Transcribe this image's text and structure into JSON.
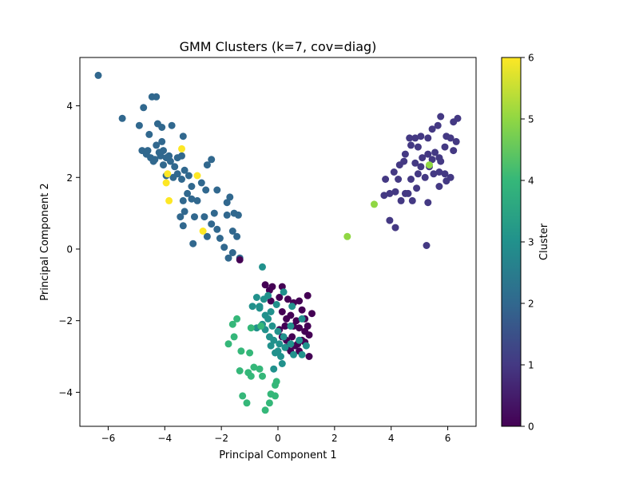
{
  "chart_data": {
    "type": "scatter",
    "title": "GMM Clusters (k=7, cov=diag)",
    "xlabel": "Principal Component 1",
    "ylabel": "Principal Component 2",
    "xlim": [
      -7.0,
      7.0
    ],
    "ylim": [
      -4.95,
      5.35
    ],
    "xticks": [
      -6,
      -4,
      -2,
      0,
      2,
      4,
      6
    ],
    "yticks": [
      -4,
      -2,
      0,
      2,
      4
    ],
    "grid": false,
    "colorbar": {
      "label": "Cluster",
      "range": [
        0,
        6
      ],
      "ticks": [
        0,
        1,
        2,
        3,
        4,
        5,
        6
      ],
      "colormap": "viridis"
    },
    "cluster_colors": [
      "#440154",
      "#443983",
      "#31688e",
      "#21918c",
      "#35b779",
      "#90d743",
      "#fde725"
    ],
    "points": [
      {
        "c": 2,
        "pts": [
          [
            -6.35,
            4.85
          ],
          [
            -5.5,
            3.65
          ],
          [
            -4.9,
            3.45
          ],
          [
            -4.75,
            3.95
          ],
          [
            -4.45,
            4.25
          ],
          [
            -4.3,
            4.25
          ],
          [
            -4.55,
            3.2
          ],
          [
            -4.25,
            3.5
          ],
          [
            -4.1,
            3.4
          ],
          [
            -3.75,
            3.45
          ],
          [
            -3.35,
            3.15
          ],
          [
            -4.1,
            3.0
          ],
          [
            -4.3,
            2.9
          ],
          [
            -4.8,
            2.75
          ],
          [
            -4.65,
            2.65
          ],
          [
            -4.5,
            2.55
          ],
          [
            -4.35,
            2.5
          ],
          [
            -4.15,
            2.6
          ],
          [
            -4.05,
            2.75
          ],
          [
            -3.95,
            2.55
          ],
          [
            -3.8,
            2.45
          ],
          [
            -3.65,
            2.3
          ],
          [
            -3.55,
            2.55
          ],
          [
            -3.4,
            2.6
          ],
          [
            -3.3,
            2.2
          ],
          [
            -3.15,
            2.05
          ],
          [
            -3.05,
            1.75
          ],
          [
            -3.4,
            1.95
          ],
          [
            -3.55,
            2.1
          ],
          [
            -3.7,
            2.0
          ],
          [
            -3.95,
            2.05
          ],
          [
            -4.05,
            2.35
          ],
          [
            -4.4,
            2.45
          ],
          [
            -4.6,
            2.75
          ],
          [
            -4.2,
            2.7
          ],
          [
            -3.85,
            2.6
          ],
          [
            -3.2,
            1.55
          ],
          [
            -3.35,
            1.35
          ],
          [
            -2.85,
            1.35
          ],
          [
            -3.05,
            1.4
          ],
          [
            -2.7,
            1.85
          ],
          [
            -2.5,
            2.35
          ],
          [
            -2.35,
            2.5
          ],
          [
            -2.15,
            1.65
          ],
          [
            -2.55,
            1.65
          ],
          [
            -3.3,
            1.05
          ],
          [
            -3.45,
            0.9
          ],
          [
            -3.35,
            0.65
          ],
          [
            -2.95,
            0.9
          ],
          [
            -2.6,
            0.9
          ],
          [
            -2.35,
            0.7
          ],
          [
            -2.5,
            0.35
          ],
          [
            -2.15,
            0.55
          ],
          [
            -2.05,
            0.3
          ],
          [
            -1.9,
            0.05
          ],
          [
            -1.75,
            -0.25
          ],
          [
            -1.8,
            0.95
          ],
          [
            -1.8,
            1.3
          ],
          [
            -1.7,
            1.45
          ],
          [
            -1.55,
            1.0
          ],
          [
            -1.4,
            0.95
          ],
          [
            -1.6,
            0.5
          ],
          [
            -1.45,
            0.35
          ],
          [
            -1.6,
            -0.1
          ],
          [
            -2.25,
            1.0
          ],
          [
            -1.35,
            -0.25
          ],
          [
            -3.0,
            0.15
          ]
        ]
      },
      {
        "c": 1,
        "pts": [
          [
            5.75,
            3.7
          ],
          [
            5.45,
            3.35
          ],
          [
            5.65,
            3.45
          ],
          [
            5.95,
            3.15
          ],
          [
            6.2,
            3.55
          ],
          [
            6.35,
            3.65
          ],
          [
            6.3,
            3.0
          ],
          [
            6.1,
            3.1
          ],
          [
            5.9,
            2.85
          ],
          [
            6.2,
            2.75
          ],
          [
            5.7,
            2.55
          ],
          [
            5.45,
            2.5
          ],
          [
            5.55,
            2.7
          ],
          [
            5.75,
            2.45
          ],
          [
            5.3,
            2.65
          ],
          [
            5.1,
            2.55
          ],
          [
            4.95,
            2.85
          ],
          [
            4.85,
            3.1
          ],
          [
            5.05,
            3.15
          ],
          [
            5.3,
            3.1
          ],
          [
            4.7,
            2.9
          ],
          [
            4.65,
            3.1
          ],
          [
            4.5,
            2.65
          ],
          [
            4.3,
            2.35
          ],
          [
            4.1,
            2.15
          ],
          [
            4.45,
            2.45
          ],
          [
            4.85,
            2.4
          ],
          [
            4.95,
            2.1
          ],
          [
            5.2,
            2.0
          ],
          [
            5.05,
            2.3
          ],
          [
            5.35,
            2.3
          ],
          [
            5.5,
            2.1
          ],
          [
            5.7,
            2.15
          ],
          [
            5.9,
            2.1
          ],
          [
            5.95,
            1.9
          ],
          [
            6.1,
            2.0
          ],
          [
            4.7,
            1.95
          ],
          [
            4.9,
            1.7
          ],
          [
            4.5,
            1.55
          ],
          [
            4.35,
            1.35
          ],
          [
            4.75,
            1.35
          ],
          [
            4.6,
            1.55
          ],
          [
            4.15,
            1.6
          ],
          [
            3.95,
            1.55
          ],
          [
            3.8,
            1.95
          ],
          [
            4.25,
            1.95
          ],
          [
            3.75,
            1.5
          ],
          [
            3.95,
            0.8
          ],
          [
            5.3,
            1.3
          ],
          [
            5.7,
            1.75
          ],
          [
            4.15,
            0.6
          ],
          [
            5.25,
            0.1
          ]
        ]
      },
      {
        "c": 0,
        "pts": [
          [
            -1.35,
            -0.3
          ],
          [
            -0.45,
            -1.0
          ],
          [
            -0.2,
            -1.05
          ],
          [
            0.15,
            -1.05
          ],
          [
            -0.3,
            -1.15
          ],
          [
            -0.25,
            -1.45
          ],
          [
            0.05,
            -1.35
          ],
          [
            0.35,
            -1.4
          ],
          [
            0.55,
            -1.5
          ],
          [
            0.75,
            -1.45
          ],
          [
            1.05,
            -1.3
          ],
          [
            0.85,
            -1.7
          ],
          [
            1.2,
            -1.8
          ],
          [
            0.95,
            -1.95
          ],
          [
            0.65,
            -2.0
          ],
          [
            0.45,
            -1.85
          ],
          [
            0.3,
            -1.95
          ],
          [
            0.25,
            -2.15
          ],
          [
            0.55,
            -2.15
          ],
          [
            0.75,
            -2.2
          ],
          [
            0.95,
            -2.3
          ],
          [
            1.1,
            -2.4
          ],
          [
            0.85,
            -2.55
          ],
          [
            0.5,
            -2.45
          ],
          [
            0.3,
            -2.55
          ],
          [
            0.6,
            -2.7
          ],
          [
            0.75,
            -2.85
          ],
          [
            0.95,
            -2.6
          ],
          [
            0.45,
            -2.85
          ],
          [
            0.3,
            -2.75
          ],
          [
            0.15,
            -2.45
          ],
          [
            0.05,
            -2.25
          ],
          [
            1.1,
            -3.0
          ],
          [
            0.7,
            -2.65
          ],
          [
            1.05,
            -2.15
          ],
          [
            0.15,
            -1.75
          ]
        ]
      },
      {
        "c": 3,
        "pts": [
          [
            -0.55,
            -0.5
          ],
          [
            -0.75,
            -1.35
          ],
          [
            -0.65,
            -1.65
          ],
          [
            -0.45,
            -1.85
          ],
          [
            -0.25,
            -1.75
          ],
          [
            -0.05,
            -1.55
          ],
          [
            -0.35,
            -1.95
          ],
          [
            -0.55,
            -2.1
          ],
          [
            -0.75,
            -2.2
          ],
          [
            -0.45,
            -2.25
          ],
          [
            -0.2,
            -2.15
          ],
          [
            0.0,
            -2.3
          ],
          [
            -0.3,
            -2.45
          ],
          [
            -0.15,
            -2.55
          ],
          [
            0.05,
            -2.65
          ],
          [
            -0.1,
            -2.9
          ],
          [
            -0.25,
            -2.7
          ],
          [
            0.1,
            -3.0
          ],
          [
            0.25,
            -2.75
          ],
          [
            0.45,
            -2.65
          ],
          [
            0.55,
            -2.95
          ],
          [
            0.75,
            -2.55
          ],
          [
            0.85,
            -2.95
          ],
          [
            1.0,
            -2.7
          ],
          [
            -0.65,
            -1.6
          ],
          [
            -0.9,
            -1.6
          ],
          [
            -0.5,
            -1.4
          ],
          [
            0.2,
            -1.2
          ],
          [
            0.5,
            -1.6
          ],
          [
            0.85,
            -1.95
          ],
          [
            0.2,
            -2.45
          ],
          [
            0.15,
            -3.2
          ],
          [
            -0.15,
            -3.35
          ],
          [
            0.0,
            -2.85
          ],
          [
            0.45,
            -2.15
          ],
          [
            -0.35,
            -1.3
          ]
        ]
      },
      {
        "c": 4,
        "pts": [
          [
            -1.45,
            -1.95
          ],
          [
            -1.6,
            -2.1
          ],
          [
            -1.75,
            -2.65
          ],
          [
            -1.55,
            -2.45
          ],
          [
            -1.3,
            -2.85
          ],
          [
            -1.0,
            -2.9
          ],
          [
            -0.95,
            -2.2
          ],
          [
            -0.6,
            -2.15
          ],
          [
            -1.35,
            -3.4
          ],
          [
            -1.05,
            -3.45
          ],
          [
            -0.95,
            -3.55
          ],
          [
            -0.85,
            -3.3
          ],
          [
            -0.65,
            -3.35
          ],
          [
            -0.55,
            -3.55
          ],
          [
            -1.25,
            -4.1
          ],
          [
            -1.1,
            -4.3
          ],
          [
            -0.45,
            -4.5
          ],
          [
            -0.3,
            -4.3
          ],
          [
            -0.25,
            -4.05
          ],
          [
            -0.1,
            -4.1
          ],
          [
            -0.1,
            -3.8
          ],
          [
            -0.05,
            -3.7
          ]
        ]
      },
      {
        "c": 5,
        "pts": [
          [
            3.4,
            1.25
          ],
          [
            2.45,
            0.35
          ],
          [
            5.35,
            2.35
          ]
        ]
      },
      {
        "c": 6,
        "pts": [
          [
            -3.4,
            2.8
          ],
          [
            -2.85,
            2.05
          ],
          [
            -3.9,
            2.1
          ],
          [
            -3.95,
            1.85
          ],
          [
            -3.85,
            1.35
          ],
          [
            -2.65,
            0.5
          ]
        ]
      }
    ]
  }
}
